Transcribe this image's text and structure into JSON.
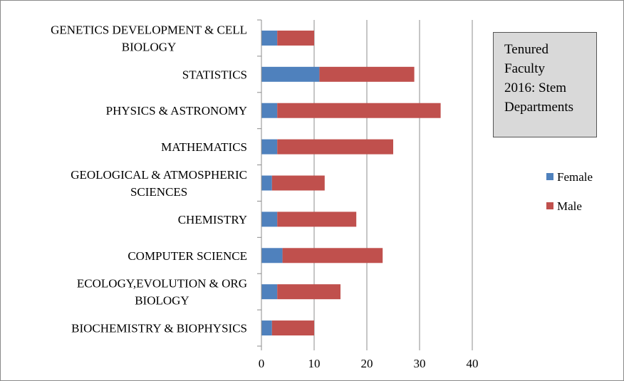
{
  "chart_data": {
    "type": "bar",
    "orientation": "horizontal",
    "stacked": true,
    "title_lines": [
      "Tenured",
      "Faculty",
      "2016: Stem",
      "Departments"
    ],
    "categories": [
      [
        "GENETICS DEVELOPMENT & CELL",
        "BIOLOGY"
      ],
      [
        "STATISTICS"
      ],
      [
        "PHYSICS & ASTRONOMY"
      ],
      [
        "MATHEMATICS"
      ],
      [
        "GEOLOGICAL & ATMOSPHERIC",
        "SCIENCES"
      ],
      [
        "CHEMISTRY"
      ],
      [
        "COMPUTER SCIENCE"
      ],
      [
        "ECOLOGY,EVOLUTION & ORG",
        "BIOLOGY"
      ],
      [
        "BIOCHEMISTRY & BIOPHYSICS"
      ]
    ],
    "series": [
      {
        "name": "Female",
        "color": "#4f81bd",
        "values": [
          3,
          11,
          3,
          3,
          2,
          3,
          4,
          3,
          2
        ]
      },
      {
        "name": "Male",
        "color": "#c0504d",
        "values": [
          7,
          18,
          31,
          22,
          10,
          15,
          19,
          12,
          8
        ]
      }
    ],
    "xlim": [
      0,
      40
    ],
    "xticks": [
      "0",
      "10",
      "20",
      "30",
      "40"
    ],
    "grid": "vertical",
    "legend": "right"
  }
}
